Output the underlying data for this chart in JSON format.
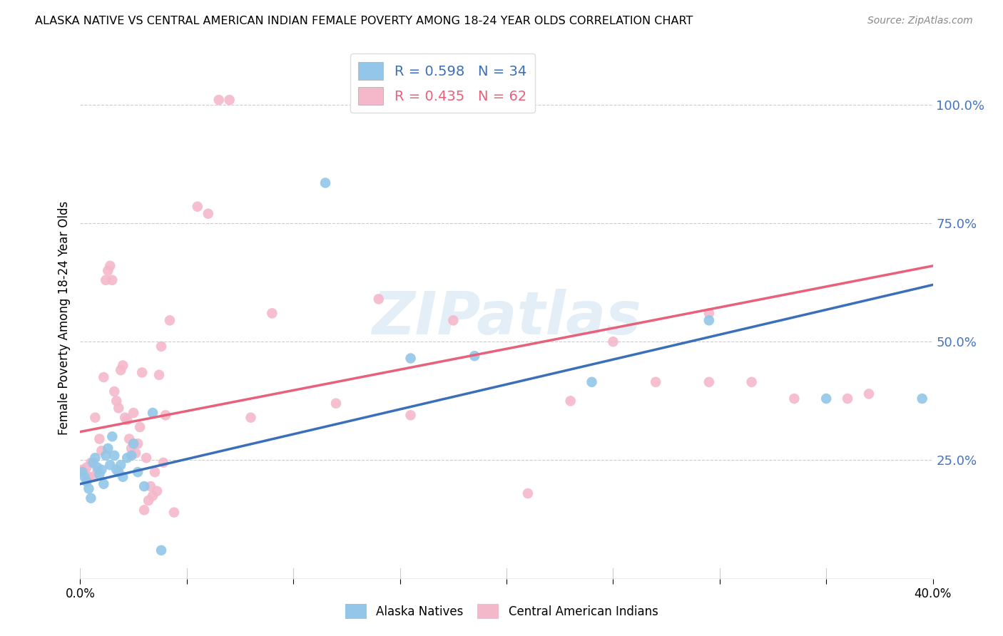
{
  "title": "ALASKA NATIVE VS CENTRAL AMERICAN INDIAN FEMALE POVERTY AMONG 18-24 YEAR OLDS CORRELATION CHART",
  "source": "Source: ZipAtlas.com",
  "ylabel": "Female Poverty Among 18-24 Year Olds",
  "xlim": [
    0,
    0.4
  ],
  "ylim": [
    0,
    1.1
  ],
  "blue_scatter_color": "#93c6e8",
  "pink_scatter_color": "#f4b8cb",
  "blue_line_color": "#3a6fba",
  "pink_line_color": "#e8607a",
  "R_blue": 0.598,
  "N_blue": 34,
  "R_pink": 0.435,
  "N_pink": 62,
  "legend_label_blue": "Alaska Natives",
  "legend_label_pink": "Central American Indians",
  "blue_line_x0": 0.0,
  "blue_line_y0": 0.2,
  "blue_line_x1": 0.4,
  "blue_line_y1": 0.62,
  "pink_line_x0": 0.0,
  "pink_line_y0": 0.31,
  "pink_line_x1": 0.4,
  "pink_line_y1": 0.66,
  "blue_x": [
    0.001,
    0.002,
    0.003,
    0.004,
    0.005,
    0.006,
    0.007,
    0.008,
    0.009,
    0.01,
    0.011,
    0.012,
    0.013,
    0.014,
    0.015,
    0.016,
    0.017,
    0.018,
    0.019,
    0.02,
    0.022,
    0.024,
    0.025,
    0.027,
    0.03,
    0.034,
    0.038,
    0.115,
    0.155,
    0.185,
    0.24,
    0.295,
    0.35,
    0.395
  ],
  "blue_y": [
    0.225,
    0.215,
    0.205,
    0.19,
    0.17,
    0.245,
    0.255,
    0.235,
    0.22,
    0.23,
    0.2,
    0.26,
    0.275,
    0.24,
    0.3,
    0.26,
    0.23,
    0.225,
    0.24,
    0.215,
    0.255,
    0.26,
    0.285,
    0.225,
    0.195,
    0.35,
    0.06,
    0.835,
    0.465,
    0.47,
    0.415,
    0.545,
    0.38,
    0.38
  ],
  "pink_x": [
    0.001,
    0.002,
    0.003,
    0.004,
    0.005,
    0.006,
    0.007,
    0.008,
    0.009,
    0.01,
    0.011,
    0.012,
    0.013,
    0.014,
    0.015,
    0.016,
    0.017,
    0.018,
    0.019,
    0.02,
    0.021,
    0.022,
    0.023,
    0.024,
    0.025,
    0.026,
    0.027,
    0.028,
    0.029,
    0.03,
    0.031,
    0.032,
    0.033,
    0.034,
    0.035,
    0.036,
    0.037,
    0.038,
    0.039,
    0.04,
    0.042,
    0.044,
    0.055,
    0.06,
    0.065,
    0.07,
    0.08,
    0.09,
    0.12,
    0.14,
    0.155,
    0.175,
    0.21,
    0.23,
    0.25,
    0.27,
    0.295,
    0.315,
    0.335,
    0.37,
    0.295,
    0.36
  ],
  "pink_y": [
    0.23,
    0.225,
    0.235,
    0.215,
    0.245,
    0.215,
    0.34,
    0.225,
    0.295,
    0.27,
    0.425,
    0.63,
    0.65,
    0.66,
    0.63,
    0.395,
    0.375,
    0.36,
    0.44,
    0.45,
    0.34,
    0.335,
    0.295,
    0.275,
    0.35,
    0.265,
    0.285,
    0.32,
    0.435,
    0.145,
    0.255,
    0.165,
    0.195,
    0.175,
    0.225,
    0.185,
    0.43,
    0.49,
    0.245,
    0.345,
    0.545,
    0.14,
    0.785,
    0.77,
    1.01,
    1.01,
    0.34,
    0.56,
    0.37,
    0.59,
    0.345,
    0.545,
    0.18,
    0.375,
    0.5,
    0.415,
    0.56,
    0.415,
    0.38,
    0.39,
    0.415,
    0.38
  ],
  "ytick_labels_right": [
    "25.0%",
    "50.0%",
    "75.0%",
    "100.0%"
  ],
  "ytick_vals_right": [
    0.25,
    0.5,
    0.75,
    1.0
  ],
  "xtick_vals": [
    0.0,
    0.05,
    0.1,
    0.15,
    0.2,
    0.25,
    0.3,
    0.35,
    0.4
  ],
  "xtick_labels_show": [
    "0.0%",
    "",
    "",
    "",
    "",
    "",
    "",
    "",
    "40.0%"
  ],
  "watermark_text": "ZIPatlas",
  "background_color": "#ffffff",
  "grid_color": "#cccccc"
}
